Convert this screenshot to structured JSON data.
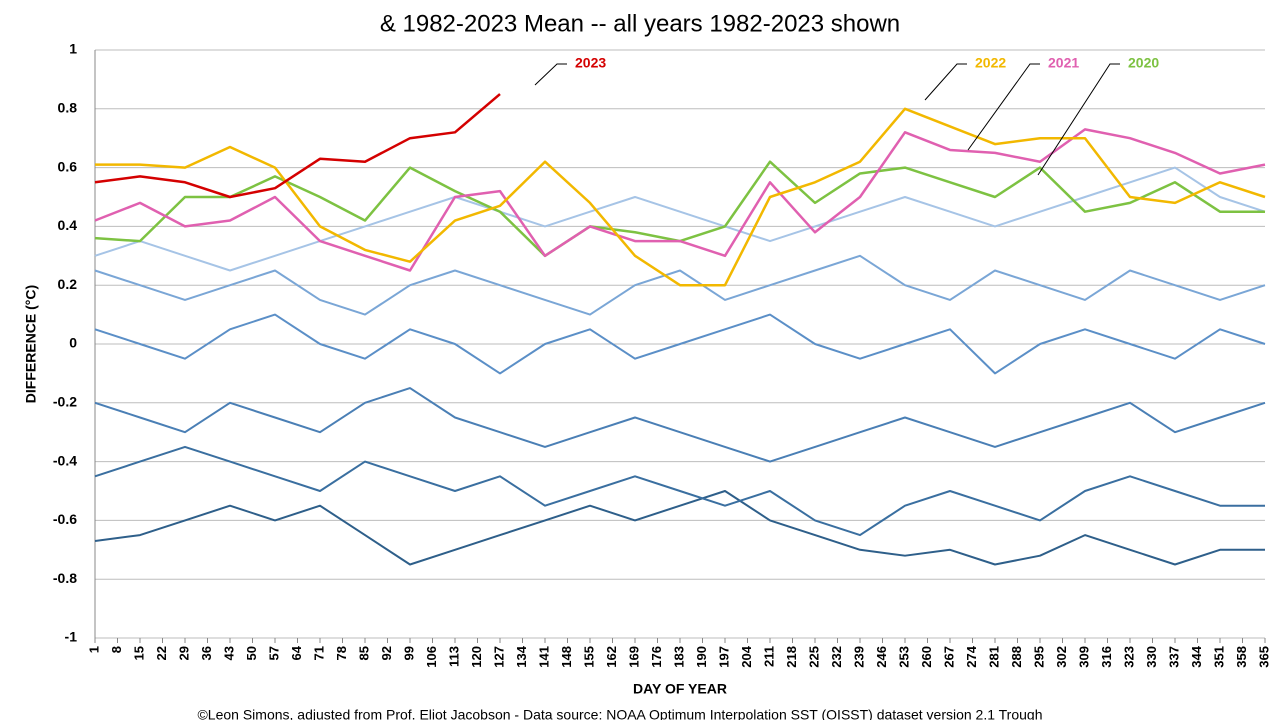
{
  "chart_data": {
    "type": "line",
    "title": "& 1982-2023 Mean -- all years 1982-2023 shown",
    "x_label": "DAY OF YEAR",
    "y_label": "DIFFERENCE (°C)",
    "footer": "©Leon Simons, adjusted from Prof. Eliot Jacobson - Data source: NOAA Optimum Interpolation SST (OISST) dataset version 2.1 Trough",
    "x": [
      1,
      15,
      29,
      43,
      57,
      71,
      85,
      99,
      113,
      127,
      141,
      155,
      169,
      183,
      197,
      211,
      225,
      239,
      253,
      267,
      281,
      295,
      309,
      323,
      337,
      351,
      365
    ],
    "series": [
      {
        "color": "#2e5f8a",
        "values": [
          -0.67,
          -0.65,
          -0.6,
          -0.55,
          -0.6,
          -0.55,
          -0.65,
          -0.75,
          -0.7,
          -0.65,
          -0.6,
          -0.55,
          -0.6,
          -0.55,
          -0.5,
          -0.6,
          -0.65,
          -0.7,
          -0.72,
          -0.7,
          -0.75,
          -0.72,
          -0.65,
          -0.7,
          -0.75,
          -0.7,
          -0.7
        ]
      },
      {
        "color": "#3a6fa0",
        "values": [
          -0.45,
          -0.4,
          -0.35,
          -0.4,
          -0.45,
          -0.5,
          -0.4,
          -0.45,
          -0.5,
          -0.45,
          -0.55,
          -0.5,
          -0.45,
          -0.5,
          -0.55,
          -0.5,
          -0.6,
          -0.65,
          -0.55,
          -0.5,
          -0.55,
          -0.6,
          -0.5,
          -0.45,
          -0.5,
          -0.55,
          -0.55
        ]
      },
      {
        "color": "#4a7fb5",
        "values": [
          -0.2,
          -0.25,
          -0.3,
          -0.2,
          -0.25,
          -0.3,
          -0.2,
          -0.15,
          -0.25,
          -0.3,
          -0.35,
          -0.3,
          -0.25,
          -0.3,
          -0.35,
          -0.4,
          -0.35,
          -0.3,
          -0.25,
          -0.3,
          -0.35,
          -0.3,
          -0.25,
          -0.2,
          -0.3,
          -0.25,
          -0.2
        ]
      },
      {
        "color": "#5b8fc7",
        "values": [
          0.05,
          0,
          -0.05,
          0.05,
          0.1,
          0,
          -0.05,
          0.05,
          0,
          -0.1,
          0,
          0.05,
          -0.05,
          0,
          0.05,
          0.1,
          0,
          -0.05,
          0,
          0.05,
          -0.1,
          0,
          0.05,
          0,
          -0.05,
          0.05,
          0
        ]
      },
      {
        "color": "#7aa6d6",
        "values": [
          0.25,
          0.2,
          0.15,
          0.2,
          0.25,
          0.15,
          0.1,
          0.2,
          0.25,
          0.2,
          0.15,
          0.1,
          0.2,
          0.25,
          0.15,
          0.2,
          0.25,
          0.3,
          0.2,
          0.15,
          0.25,
          0.2,
          0.15,
          0.25,
          0.2,
          0.15,
          0.2
        ]
      },
      {
        "color": "#a6c4e6",
        "values": [
          0.3,
          0.35,
          0.3,
          0.25,
          0.3,
          0.35,
          0.4,
          0.45,
          0.5,
          0.45,
          0.4,
          0.45,
          0.5,
          0.45,
          0.4,
          0.35,
          0.4,
          0.45,
          0.5,
          0.45,
          0.4,
          0.45,
          0.5,
          0.55,
          0.6,
          0.5,
          0.45
        ]
      },
      {
        "name": "2020",
        "color": "#7dc242",
        "values": [
          0.36,
          0.35,
          0.5,
          0.5,
          0.57,
          0.5,
          0.42,
          0.6,
          0.52,
          0.45,
          0.3,
          0.4,
          0.38,
          0.35,
          0.4,
          0.62,
          0.48,
          0.58,
          0.6,
          0.55,
          0.5,
          0.6,
          0.45,
          0.48,
          0.55,
          0.45,
          0.45
        ]
      },
      {
        "name": "2021",
        "color": "#e060b0",
        "values": [
          0.42,
          0.48,
          0.4,
          0.42,
          0.5,
          0.35,
          0.3,
          0.25,
          0.5,
          0.52,
          0.3,
          0.4,
          0.35,
          0.35,
          0.3,
          0.55,
          0.38,
          0.5,
          0.72,
          0.66,
          0.65,
          0.62,
          0.73,
          0.7,
          0.65,
          0.58,
          0.61
        ]
      },
      {
        "name": "2022",
        "color": "#f2b800",
        "values": [
          0.61,
          0.61,
          0.6,
          0.67,
          0.6,
          0.4,
          0.32,
          0.28,
          0.42,
          0.47,
          0.62,
          0.48,
          0.3,
          0.2,
          0.2,
          0.5,
          0.55,
          0.62,
          0.8,
          0.74,
          0.68,
          0.7,
          0.7,
          0.5,
          0.48,
          0.55,
          0.5
        ]
      },
      {
        "name": "2023",
        "color": "#d40000",
        "values": [
          0.55,
          0.57,
          0.55,
          0.5,
          0.53,
          0.63,
          0.62,
          0.7,
          0.72,
          0.85,
          null,
          null,
          null,
          null,
          null,
          null,
          null,
          null,
          null,
          null,
          null,
          null,
          null,
          null,
          null,
          null,
          null
        ]
      }
    ],
    "xlim": [
      1,
      365
    ],
    "xticks": [
      1,
      8,
      15,
      22,
      29,
      36,
      43,
      50,
      57,
      64,
      71,
      78,
      85,
      92,
      99,
      106,
      113,
      120,
      127,
      134,
      141,
      148,
      155,
      162,
      169,
      176,
      183,
      190,
      197,
      204,
      211,
      218,
      225,
      232,
      239,
      246,
      253,
      260,
      267,
      274,
      281,
      288,
      295,
      302,
      309,
      316,
      323,
      330,
      337,
      344,
      351,
      358,
      365
    ],
    "ylim": [
      -1,
      1
    ],
    "yticks": [
      -1,
      -0.8,
      -0.6,
      -0.4,
      -0.2,
      0,
      0.2,
      0.4,
      0.6,
      0.8,
      1
    ],
    "grid": true
  }
}
